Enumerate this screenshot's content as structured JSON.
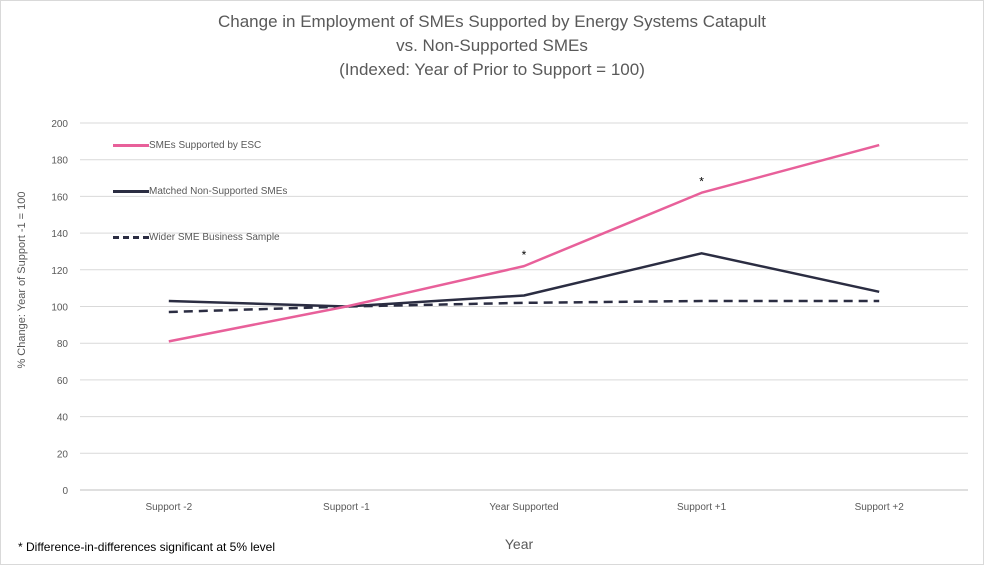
{
  "chart_data": {
    "type": "line",
    "title_lines": [
      "Change in Employment of SMEs Supported by Energy Systems Catapult",
      "vs. Non-Supported SMEs",
      "(Indexed: Year of Prior to Support = 100)"
    ],
    "xlabel": "Year",
    "ylabel": "% Change: Year of Support -1 = 100",
    "categories": [
      "Support -2",
      "Support -1",
      "Year Supported",
      "Support +1",
      "Support +2"
    ],
    "ylim": [
      0,
      200
    ],
    "yticks": [
      0,
      20,
      40,
      60,
      80,
      100,
      120,
      140,
      160,
      180,
      200
    ],
    "grid": true,
    "legend_position": "top-left",
    "series": [
      {
        "name": "SMEs Supported by ESC",
        "color": "#e8609a",
        "style": "solid",
        "values": [
          81,
          100,
          122,
          162,
          188
        ]
      },
      {
        "name": "Matched Non-Supported SMEs",
        "color": "#2b2d42",
        "style": "solid",
        "values": [
          103,
          100,
          106,
          129,
          108
        ]
      },
      {
        "name": "Wider SME Business Sample",
        "color": "#2b2d42",
        "style": "dashed",
        "values": [
          97,
          100,
          102,
          103,
          103
        ]
      }
    ],
    "annotations": [
      {
        "category": "Year Supported",
        "value": 128,
        "text": "*"
      },
      {
        "category": "Support +1",
        "value": 168,
        "text": "*"
      }
    ],
    "footnote": "* Difference-in-differences significant at 5% level"
  }
}
